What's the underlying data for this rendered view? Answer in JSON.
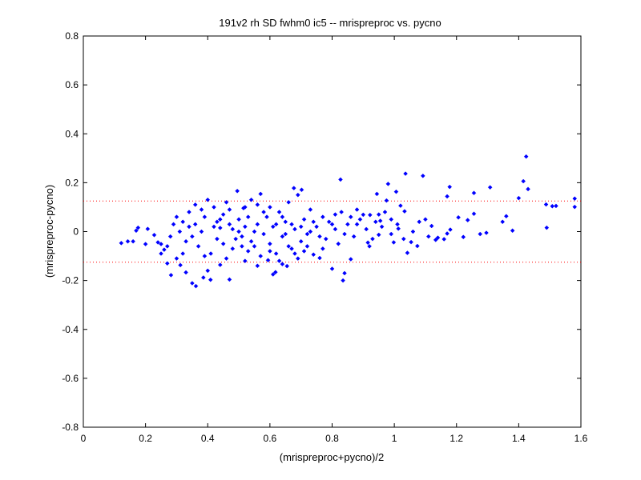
{
  "chart_data": {
    "type": "scatter",
    "title": "191v2 rh SD fwhm0 ic5 -- mrispreproc vs. pycno",
    "xlabel": "(mrispreproc+pycno)/2",
    "ylabel": "(mrispreproc-pycno)",
    "xlim": [
      0,
      1.6
    ],
    "ylim": [
      -0.8,
      0.8
    ],
    "xticks": [
      "0",
      "0.2",
      "0.4",
      "0.6",
      "0.8",
      "1",
      "1.2",
      "1.4",
      "1.6"
    ],
    "yticks": [
      "-0.8",
      "-0.6",
      "-0.4",
      "-0.2",
      "0",
      "0.2",
      "0.4",
      "0.6",
      "0.8"
    ],
    "grid": false,
    "colors": {
      "points": "#0000ff",
      "limit_lines": "#ff0000",
      "axes": "#000000"
    },
    "reference_lines": [
      {
        "y": 0.125,
        "style": "dotted",
        "color": "#ff0000"
      },
      {
        "y": -0.125,
        "style": "dotted",
        "color": "#ff0000"
      }
    ],
    "series": [
      {
        "marker": "diamond",
        "color": "#0000ff",
        "points": [
          [
            1.424,
            0.307
          ],
          [
            1.415,
            0.206
          ],
          [
            1.43,
            0.174
          ],
          [
            1.58,
            0.135
          ],
          [
            1.58,
            0.101
          ],
          [
            1.036,
            0.237
          ],
          [
            1.092,
            0.228
          ],
          [
            0.827,
            0.213
          ],
          [
            0.98,
            0.195
          ],
          [
            1.006,
            0.163
          ],
          [
            1.178,
            0.183
          ],
          [
            1.17,
            0.144
          ],
          [
            1.308,
            0.181
          ],
          [
            1.256,
            0.158
          ],
          [
            1.4,
            0.137
          ],
          [
            1.488,
            0.111
          ],
          [
            1.508,
            0.104
          ],
          [
            1.49,
            0.016
          ],
          [
            1.52,
            0.105
          ],
          [
            1.36,
            0.063
          ],
          [
            1.348,
            0.04
          ],
          [
            1.38,
            0.004
          ],
          [
            1.256,
            0.073
          ],
          [
            1.236,
            0.047
          ],
          [
            1.222,
            -0.022
          ],
          [
            1.206,
            0.058
          ],
          [
            1.18,
            0.008
          ],
          [
            1.17,
            -0.008
          ],
          [
            1.296,
            -0.005
          ],
          [
            1.276,
            -0.01
          ],
          [
            1.16,
            -0.031
          ],
          [
            1.133,
            -0.034
          ],
          [
            1.14,
            -0.025
          ],
          [
            1.12,
            0.023
          ],
          [
            1.1,
            0.05
          ],
          [
            1.074,
            -0.059
          ],
          [
            1.054,
            -0.043
          ],
          [
            1.042,
            -0.087
          ],
          [
            0.998,
            -0.044
          ],
          [
            1.02,
            0.106
          ],
          [
            1.033,
            0.083
          ],
          [
            1.06,
            0.0
          ],
          [
            1.013,
            0.012
          ],
          [
            0.975,
            0.127
          ],
          [
            0.944,
            0.154
          ],
          [
            0.955,
            0.044
          ],
          [
            0.95,
            -0.013
          ],
          [
            0.922,
            0.068
          ],
          [
            0.915,
            -0.045
          ],
          [
            0.9,
            0.069
          ],
          [
            0.88,
            0.03
          ],
          [
            0.86,
            -0.113
          ],
          [
            0.84,
            -0.17
          ],
          [
            0.835,
            -0.2
          ],
          [
            0.8,
            -0.152
          ],
          [
            0.76,
            -0.108
          ],
          [
            0.74,
            -0.094
          ],
          [
            0.702,
            0.171
          ],
          [
            0.677,
            0.178
          ],
          [
            0.655,
            -0.141
          ],
          [
            0.64,
            -0.133
          ],
          [
            0.618,
            -0.166
          ],
          [
            0.61,
            -0.175
          ],
          [
            0.594,
            -0.117
          ],
          [
            0.57,
            0.154
          ],
          [
            0.54,
            0.13
          ],
          [
            0.515,
            0.096
          ],
          [
            0.495,
            0.166
          ],
          [
            0.47,
            -0.196
          ],
          [
            0.44,
            -0.136
          ],
          [
            0.409,
            -0.197
          ],
          [
            0.386,
            -0.188
          ],
          [
            0.362,
            -0.223
          ],
          [
            0.35,
            -0.211
          ],
          [
            0.33,
            -0.167
          ],
          [
            0.312,
            -0.137
          ],
          [
            0.282,
            -0.178
          ],
          [
            0.27,
            -0.13
          ],
          [
            0.26,
            -0.074
          ],
          [
            0.25,
            -0.051
          ],
          [
            0.24,
            -0.044
          ],
          [
            0.228,
            -0.014
          ],
          [
            0.207,
            0.011
          ],
          [
            0.2,
            -0.051
          ],
          [
            0.176,
            0.016
          ],
          [
            0.17,
            0.004
          ],
          [
            0.16,
            -0.04
          ],
          [
            0.143,
            -0.04
          ],
          [
            0.122,
            -0.047
          ],
          [
            0.29,
            0.03
          ],
          [
            0.3,
            0.06
          ],
          [
            0.32,
            0.04
          ],
          [
            0.34,
            0.08
          ],
          [
            0.36,
            0.11
          ],
          [
            0.38,
            0.09
          ],
          [
            0.39,
            0.06
          ],
          [
            0.4,
            0.13
          ],
          [
            0.42,
            0.1
          ],
          [
            0.43,
            0.04
          ],
          [
            0.44,
            0.015
          ],
          [
            0.45,
            0.07
          ],
          [
            0.46,
            0.12
          ],
          [
            0.48,
            0.01
          ],
          [
            0.49,
            -0.03
          ],
          [
            0.5,
            0.05
          ],
          [
            0.51,
            -0.06
          ],
          [
            0.52,
            0.02
          ],
          [
            0.53,
            -0.08
          ],
          [
            0.55,
            0.0
          ],
          [
            0.56,
            0.11
          ],
          [
            0.58,
            -0.01
          ],
          [
            0.59,
            0.06
          ],
          [
            0.6,
            -0.05
          ],
          [
            0.62,
            0.03
          ],
          [
            0.63,
            0.08
          ],
          [
            0.64,
            -0.02
          ],
          [
            0.65,
            0.04
          ],
          [
            0.66,
            0.12
          ],
          [
            0.67,
            -0.07
          ],
          [
            0.68,
            0.01
          ],
          [
            0.69,
            0.15
          ],
          [
            0.7,
            -0.04
          ],
          [
            0.71,
            0.05
          ],
          [
            0.72,
            -0.01
          ],
          [
            0.73,
            0.09
          ],
          [
            0.75,
            0.02
          ],
          [
            0.77,
            0.06
          ],
          [
            0.78,
            -0.03
          ],
          [
            0.79,
            0.04
          ],
          [
            0.81,
            0.01
          ],
          [
            0.82,
            -0.05
          ],
          [
            0.83,
            0.08
          ],
          [
            0.85,
            0.03
          ],
          [
            0.87,
            -0.02
          ],
          [
            0.89,
            0.05
          ],
          [
            0.91,
            0.01
          ],
          [
            0.93,
            -0.03
          ],
          [
            0.96,
            0.02
          ],
          [
            0.99,
            -0.01
          ],
          [
            1.01,
            0.03
          ],
          [
            0.33,
            -0.04
          ],
          [
            0.35,
            -0.02
          ],
          [
            0.37,
            -0.06
          ],
          [
            0.41,
            -0.09
          ],
          [
            0.43,
            -0.03
          ],
          [
            0.46,
            -0.11
          ],
          [
            0.48,
            -0.07
          ],
          [
            0.52,
            -0.12
          ],
          [
            0.54,
            -0.04
          ],
          [
            0.57,
            -0.1
          ],
          [
            0.6,
            -0.08
          ],
          [
            0.63,
            -0.12
          ],
          [
            0.66,
            -0.06
          ],
          [
            0.69,
            -0.11
          ],
          [
            0.72,
            -0.06
          ],
          [
            0.25,
            -0.09
          ],
          [
            0.27,
            -0.06
          ],
          [
            0.28,
            -0.02
          ],
          [
            0.31,
            0.0
          ],
          [
            0.34,
            0.02
          ],
          [
            0.36,
            0.03
          ],
          [
            0.38,
            0.0
          ],
          [
            0.42,
            0.02
          ],
          [
            0.47,
            0.03
          ],
          [
            0.5,
            0.0
          ],
          [
            0.53,
            0.06
          ],
          [
            0.56,
            0.03
          ],
          [
            0.61,
            0.02
          ],
          [
            0.65,
            -0.01
          ],
          [
            0.7,
            0.02
          ],
          [
            0.74,
            0.04
          ],
          [
            0.8,
            0.03
          ],
          [
            0.86,
            0.06
          ],
          [
            0.94,
            0.04
          ],
          [
            0.97,
            0.08
          ],
          [
            0.32,
            -0.09
          ],
          [
            0.39,
            -0.1
          ],
          [
            0.45,
            -0.05
          ],
          [
            0.51,
            -0.02
          ],
          [
            0.55,
            -0.06
          ],
          [
            0.58,
            0.08
          ],
          [
            0.62,
            -0.09
          ],
          [
            0.67,
            0.03
          ],
          [
            0.71,
            -0.08
          ],
          [
            0.76,
            -0.02
          ],
          [
            0.3,
            -0.11
          ],
          [
            0.4,
            -0.16
          ],
          [
            0.44,
            0.05
          ],
          [
            0.47,
            0.09
          ],
          [
            0.52,
            0.1
          ],
          [
            0.56,
            -0.14
          ],
          [
            0.6,
            0.1
          ],
          [
            0.64,
            0.06
          ],
          [
            0.68,
            -0.09
          ],
          [
            0.73,
            0.0
          ],
          [
            0.77,
            -0.07
          ],
          [
            0.81,
            0.07
          ],
          [
            0.84,
            -0.01
          ],
          [
            0.88,
            0.09
          ],
          [
            0.92,
            -0.06
          ],
          [
            0.95,
            0.07
          ],
          [
            0.99,
            0.05
          ],
          [
            1.03,
            -0.03
          ],
          [
            1.08,
            0.04
          ],
          [
            1.11,
            -0.02
          ]
        ]
      }
    ]
  }
}
